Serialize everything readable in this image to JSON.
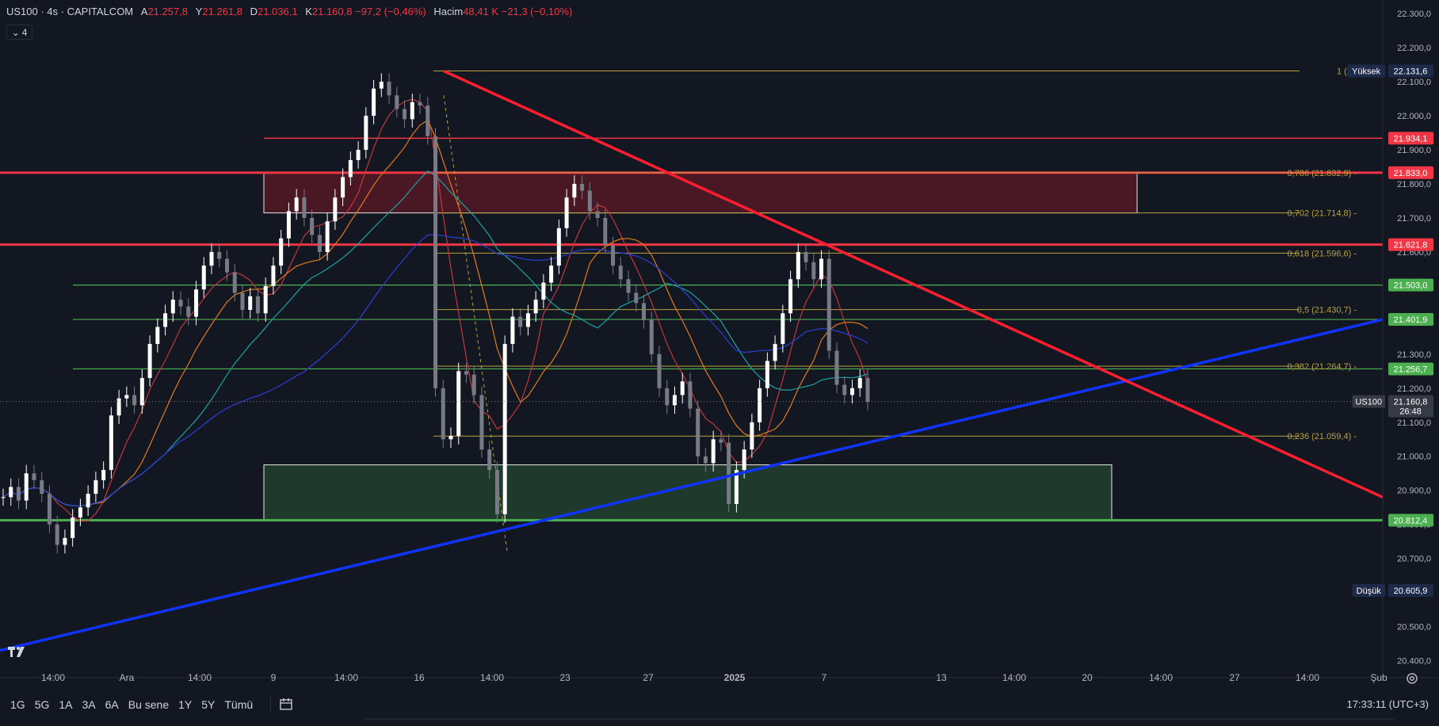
{
  "header": {
    "symbol": "US100 · 4s · CAPITALCOM",
    "open_label": "A",
    "open": "21.257,8",
    "high_label": "Y",
    "high": "21.261,8",
    "low_label": "D",
    "low": "21.036,1",
    "close_label": "K",
    "close": "21.160,8",
    "change": "−97,2 (−0,46%)",
    "volume_label": "Hacim",
    "volume": "48,41 K",
    "volume_change": "−21,3 (−0,10%)",
    "indicators_count": "4"
  },
  "price_scale": {
    "ticks": [
      "22.300,0",
      "22.200,0",
      "22.100,0",
      "22.000,0",
      "21.900,0",
      "21.800,0",
      "21.700,0",
      "21.600,0",
      "21.500,0",
      "21.400,0",
      "21.300,0",
      "21.200,0",
      "21.100,0",
      "21.000,0",
      "20.900,0",
      "20.800,0",
      "20.700,0",
      "20.600,0",
      "20.500,0",
      "20.400,0"
    ],
    "labels": [
      {
        "text": "22.131,6",
        "tag": "Yüksek",
        "color": "#1e2a4a",
        "price": 22131.6
      },
      {
        "text": "21.934,1",
        "color": "#f23645",
        "price": 21934.1
      },
      {
        "text": "21.833,0",
        "color": "#f23645",
        "price": 21833.0
      },
      {
        "text": "21.621,8",
        "color": "#f23645",
        "price": 21621.8
      },
      {
        "text": "21.503,0",
        "color": "#4caf50",
        "price": 21503.0
      },
      {
        "text": "21.401,9",
        "color": "#4caf50",
        "price": 21401.9
      },
      {
        "text": "21.256,7",
        "color": "#4caf50",
        "price": 21256.7
      },
      {
        "text": "21.160,8",
        "tag": "US100",
        "sub": "26:48",
        "color": "#363a45",
        "price": 21160.8
      },
      {
        "text": "20.812,4",
        "color": "#4caf50",
        "price": 20812.4
      },
      {
        "text": "20.605,9",
        "tag": "Düşük",
        "color": "#1e2a4a",
        "price": 20605.9
      }
    ]
  },
  "fib_levels": [
    {
      "label": "1 (22",
      "price": 22131.6
    },
    {
      "label": "0,786 (21.832,9)",
      "price": 21832.9
    },
    {
      "label": "0,702 (21.714,8)",
      "price": 21714.8
    },
    {
      "label": "0,618 (21.596,6)",
      "price": 21596.6
    },
    {
      "label": "0,5 (21.430,7)",
      "price": 21430.7
    },
    {
      "label": "0,382 (21.264,7)",
      "price": 21264.7
    },
    {
      "label": "0,236 (21.059,4)",
      "price": 21059.4
    }
  ],
  "time_axis": [
    "14:00",
    "Ara",
    "14:00",
    "9",
    "14:00",
    "16",
    "14:00",
    "23",
    "27",
    "2025",
    "7",
    "13",
    "14:00",
    "20",
    "14:00",
    "27",
    "14:00",
    "Şub"
  ],
  "timeframes": [
    "1G",
    "5G",
    "1A",
    "3A",
    "6A",
    "Bu sene",
    "1Y",
    "5Y",
    "Tümü"
  ],
  "clock": "17:33:11 (UTC+3)",
  "colors": {
    "background": "#131722",
    "up": "#ffffff",
    "down": "#787b86",
    "resistance": "#f23645",
    "support": "#4caf50",
    "trend_up": "#1034ff",
    "trend_down": "#ff1e30",
    "fib": "#b8a33a",
    "zone_red": "#4a1824",
    "zone_green": "#1f3a2c"
  },
  "chart_data": {
    "type": "candlestick",
    "price_range": [
      20350,
      22340
    ],
    "series": [
      {
        "name": "candles",
        "values": [
          20880,
          20910,
          20870,
          20950,
          20930,
          20890,
          20800,
          20740,
          20760,
          20820,
          20850,
          20890,
          20930,
          20960,
          21120,
          21170,
          21180,
          21150,
          21230,
          21330,
          21380,
          21420,
          21460,
          21440,
          21410,
          21490,
          21560,
          21600,
          21580,
          21540,
          21480,
          21430,
          21470,
          21420,
          21500,
          21560,
          21640,
          21720,
          21760,
          21700,
          21650,
          21600,
          21690,
          21760,
          21820,
          21870,
          21900,
          22000,
          22080,
          22100,
          22060,
          22020,
          21990,
          22040,
          22030,
          21940,
          21200,
          21050,
          21060,
          21250,
          21240,
          21180,
          21020,
          20960,
          20830,
          21330,
          21410,
          21380,
          21420,
          21460,
          21510,
          21560,
          21670,
          21760,
          21800,
          21780,
          21720,
          21700,
          21620,
          21560,
          21520,
          21480,
          21450,
          21400,
          21300,
          21200,
          21150,
          21180,
          21220,
          21140,
          21000,
          20980,
          21050,
          21040,
          20860,
          20960,
          21020,
          21100,
          21200,
          21280,
          21330,
          21420,
          21520,
          21600,
          21570,
          21520,
          21580,
          21310,
          21210,
          21180,
          21200,
          21230,
          21160
        ]
      }
    ]
  }
}
